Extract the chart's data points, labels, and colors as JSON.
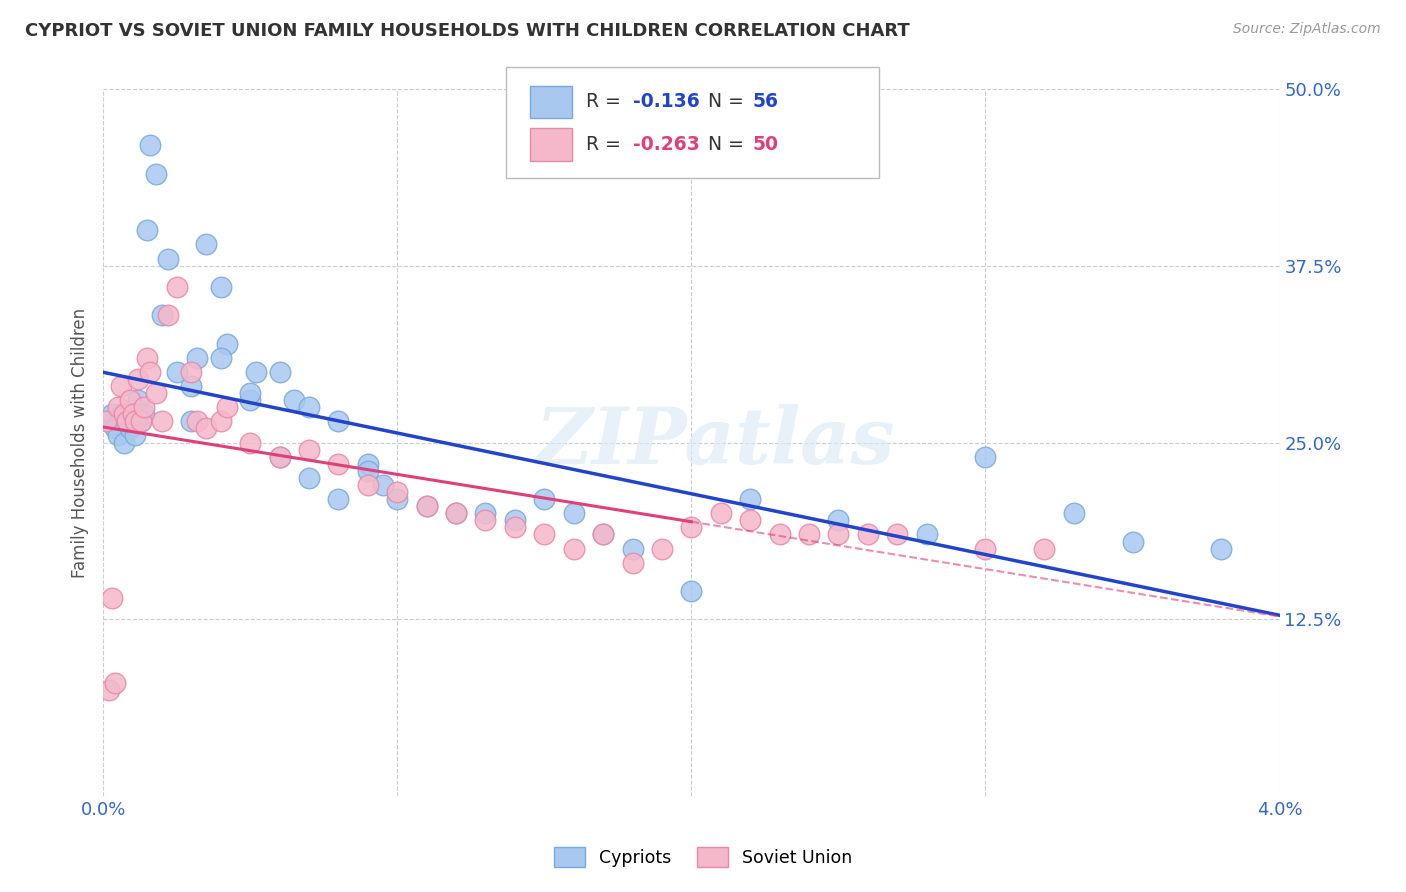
{
  "title": "CYPRIOT VS SOVIET UNION FAMILY HOUSEHOLDS WITH CHILDREN CORRELATION CHART",
  "source": "Source: ZipAtlas.com",
  "ylabel": "Family Households with Children",
  "x_min": 0.0,
  "x_max": 0.04,
  "y_min": 0.0,
  "y_max": 0.5,
  "x_ticks": [
    0.0,
    0.01,
    0.02,
    0.03,
    0.04
  ],
  "x_ticklabels": [
    "0.0%",
    "",
    "",
    "",
    "4.0%"
  ],
  "y_ticks": [
    0.0,
    0.125,
    0.25,
    0.375,
    0.5
  ],
  "y_ticklabels": [
    "",
    "12.5%",
    "25.0%",
    "37.5%",
    "50.0%"
  ],
  "cypriot_color": "#a8c8f0",
  "soviet_color": "#f5b8cb",
  "cypriot_edge": "#7aaad8",
  "soviet_edge": "#e888a8",
  "trend_cypriot_color": "#2244cc",
  "trend_soviet_color": "#e0407a",
  "R_cypriot": -0.136,
  "N_cypriot": 56,
  "R_soviet": -0.263,
  "N_soviet": 50,
  "legend_label_cypriot": "Cypriots",
  "legend_label_soviet": "Soviet Union",
  "watermark": "ZIPatlas",
  "background_color": "#ffffff",
  "grid_color": "#cccccc",
  "cypriot_x": [
    0.0002,
    0.0003,
    0.0004,
    0.0005,
    0.0006,
    0.0007,
    0.0008,
    0.0009,
    0.001,
    0.0011,
    0.0012,
    0.0013,
    0.0014,
    0.0015,
    0.0016,
    0.0018,
    0.002,
    0.0022,
    0.0025,
    0.003,
    0.0032,
    0.0035,
    0.004,
    0.0042,
    0.005,
    0.0052,
    0.006,
    0.0065,
    0.007,
    0.008,
    0.009,
    0.0095,
    0.003,
    0.004,
    0.005,
    0.006,
    0.007,
    0.008,
    0.009,
    0.01,
    0.011,
    0.012,
    0.013,
    0.014,
    0.015,
    0.016,
    0.017,
    0.018,
    0.02,
    0.022,
    0.025,
    0.028,
    0.03,
    0.033,
    0.035,
    0.038
  ],
  "cypriot_y": [
    0.265,
    0.27,
    0.26,
    0.255,
    0.27,
    0.25,
    0.265,
    0.26,
    0.27,
    0.255,
    0.28,
    0.265,
    0.27,
    0.4,
    0.46,
    0.44,
    0.34,
    0.38,
    0.3,
    0.29,
    0.31,
    0.39,
    0.36,
    0.32,
    0.28,
    0.3,
    0.3,
    0.28,
    0.275,
    0.265,
    0.235,
    0.22,
    0.265,
    0.31,
    0.285,
    0.24,
    0.225,
    0.21,
    0.23,
    0.21,
    0.205,
    0.2,
    0.2,
    0.195,
    0.21,
    0.2,
    0.185,
    0.175,
    0.145,
    0.21,
    0.195,
    0.185,
    0.24,
    0.2,
    0.18,
    0.175
  ],
  "soviet_x": [
    0.0001,
    0.0002,
    0.0003,
    0.0004,
    0.0005,
    0.0006,
    0.0007,
    0.0008,
    0.0009,
    0.001,
    0.0011,
    0.0012,
    0.0013,
    0.0014,
    0.0015,
    0.0016,
    0.0018,
    0.002,
    0.0022,
    0.0025,
    0.003,
    0.0032,
    0.0035,
    0.004,
    0.0042,
    0.005,
    0.006,
    0.007,
    0.008,
    0.009,
    0.01,
    0.011,
    0.012,
    0.013,
    0.014,
    0.015,
    0.016,
    0.017,
    0.018,
    0.019,
    0.02,
    0.021,
    0.022,
    0.023,
    0.024,
    0.025,
    0.026,
    0.027,
    0.03,
    0.032
  ],
  "soviet_y": [
    0.265,
    0.075,
    0.14,
    0.08,
    0.275,
    0.29,
    0.27,
    0.265,
    0.28,
    0.27,
    0.265,
    0.295,
    0.265,
    0.275,
    0.31,
    0.3,
    0.285,
    0.265,
    0.34,
    0.36,
    0.3,
    0.265,
    0.26,
    0.265,
    0.275,
    0.25,
    0.24,
    0.245,
    0.235,
    0.22,
    0.215,
    0.205,
    0.2,
    0.195,
    0.19,
    0.185,
    0.175,
    0.185,
    0.165,
    0.175,
    0.19,
    0.2,
    0.195,
    0.185,
    0.185,
    0.185,
    0.185,
    0.185,
    0.175,
    0.175
  ],
  "soviet_trend_x_end": 0.02,
  "soviet_trend_dashed_start": 0.02
}
